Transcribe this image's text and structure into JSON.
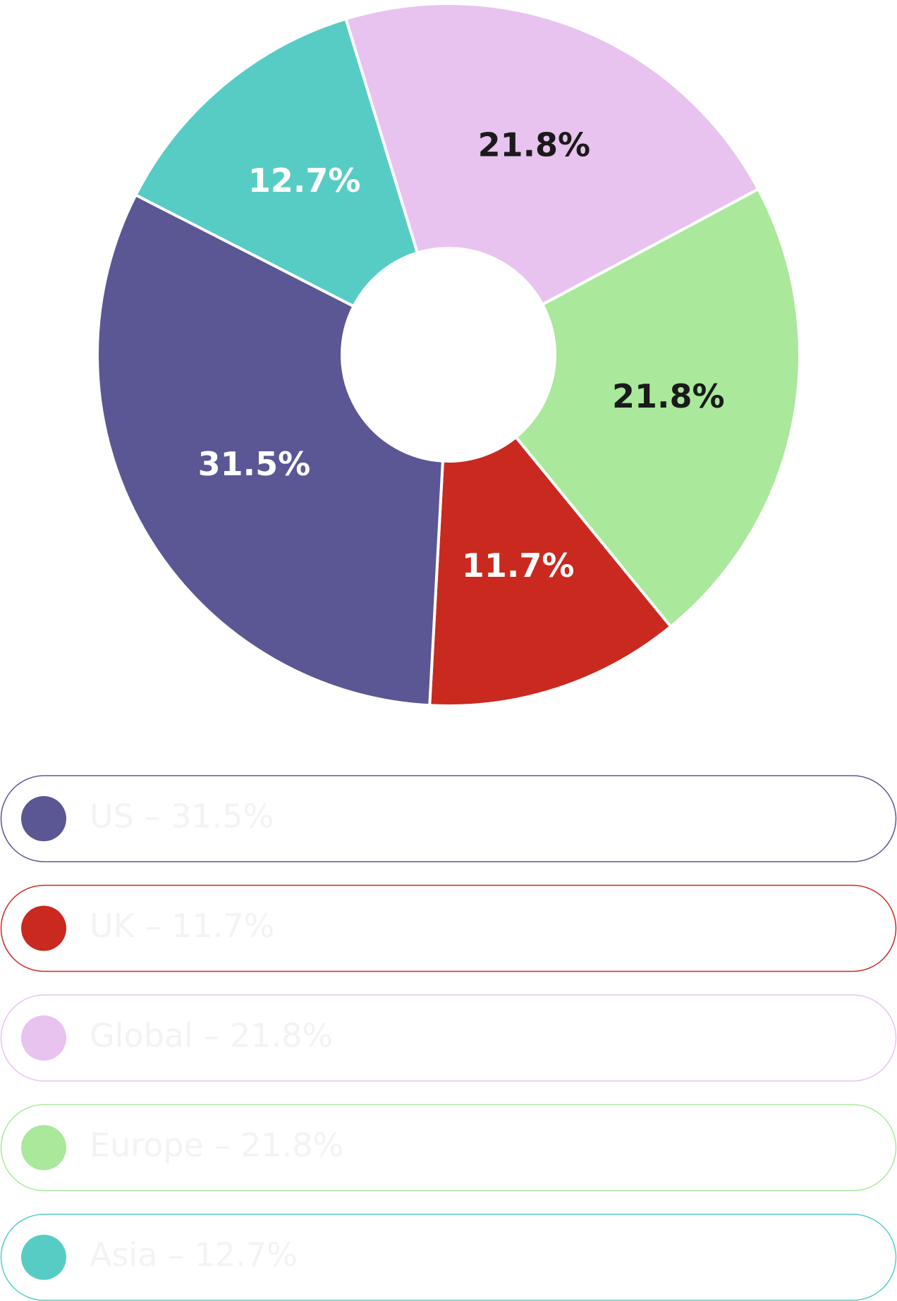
{
  "chart_data": {
    "type": "donut",
    "categories": [
      "US",
      "UK",
      "Global",
      "Europe",
      "Asia"
    ],
    "values": [
      31.5,
      11.7,
      21.8,
      21.8,
      12.7
    ],
    "value_labels": [
      "31.5%",
      "11.7%",
      "21.8%",
      "21.8%",
      "12.7%"
    ],
    "colors": [
      "#5b5694",
      "#c9291e",
      "#e8c3ef",
      "#aae89c",
      "#57ccc4"
    ],
    "label_colors": [
      "#ffffff",
      "#ffffff",
      "#1a1a1a",
      "#1a1a1a",
      "#ffffff"
    ],
    "legend_labels": [
      "US – 31.5%",
      "UK – 11.7%",
      "Global – 21.8%",
      "Europe – 21.8%",
      "Asia – 12.7%"
    ]
  }
}
